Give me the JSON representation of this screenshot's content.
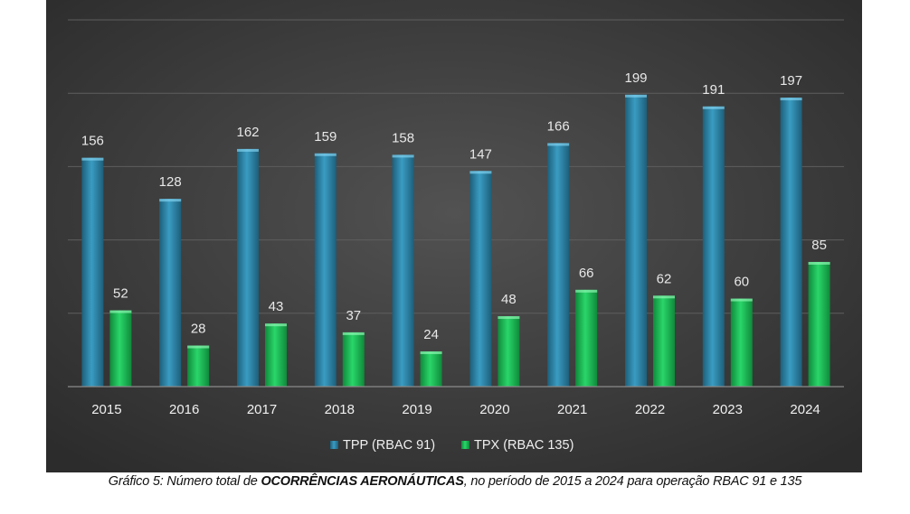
{
  "chart_data": {
    "type": "bar",
    "categories": [
      "2015",
      "2016",
      "2017",
      "2018",
      "2019",
      "2020",
      "2021",
      "2022",
      "2023",
      "2024"
    ],
    "series": [
      {
        "name": "TPP (RBAC 91)",
        "color": "#2e86a8",
        "values": [
          156,
          128,
          162,
          159,
          158,
          147,
          166,
          199,
          191,
          197
        ]
      },
      {
        "name": "TPX (RBAC 135)",
        "color": "#1fc25a",
        "values": [
          52,
          28,
          43,
          37,
          24,
          48,
          66,
          62,
          60,
          85
        ]
      }
    ],
    "ylim": [
      0,
      250
    ],
    "ytick_step": 50,
    "grid": true,
    "legend_position": "bottom-center",
    "background": "#404040"
  },
  "caption": {
    "prefix": "Gráfico 5: Número total de ",
    "bold": "OCORRÊNCIAS AERONÁUTICAS",
    "suffix": ", no período de 2015 a 2024 para operação RBAC 91 e 135"
  }
}
